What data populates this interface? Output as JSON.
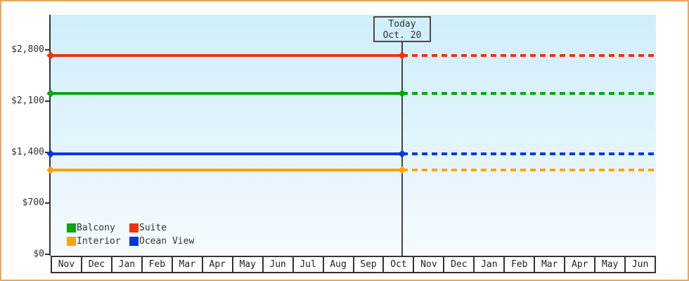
{
  "colors": {
    "frame": "#e9a75f",
    "axis": "#333333",
    "today_line": "#444444",
    "plot_bg_top": "#cfeefa",
    "plot_bg_bottom": "#f5fbfe",
    "balcony": "#0aa50f",
    "suite": "#ee3311",
    "interior": "#ffa405",
    "ocean_view": "#0535e8"
  },
  "today_box": {
    "line1": "Today",
    "line2": "Oct. 20"
  },
  "y_axis": {
    "tick_labels": [
      "$2,800",
      "$2,100",
      "$1,400",
      "$700",
      "$0"
    ],
    "tick_values": [
      2800,
      2100,
      1400,
      700,
      0
    ]
  },
  "legend": {
    "items": [
      {
        "label": "Balcony",
        "color_key": "balcony"
      },
      {
        "label": "Suite",
        "color_key": "suite"
      },
      {
        "label": "Interior",
        "color_key": "interior"
      },
      {
        "label": "Ocean View",
        "color_key": "ocean_view"
      }
    ]
  },
  "chart_data": {
    "type": "line",
    "title": "",
    "categories": [
      "Nov",
      "Dec",
      "Jan",
      "Feb",
      "Mar",
      "Apr",
      "May",
      "Jun",
      "Jul",
      "Aug",
      "Sep",
      "Oct",
      "Nov",
      "Dec",
      "Jan",
      "Feb",
      "Mar",
      "Apr",
      "May",
      "Jun"
    ],
    "series": [
      {
        "name": "Suite",
        "color": "#ee3311",
        "value": 2725,
        "constant_flat_line": true,
        "solid_until": "Oct. 20",
        "dashed_after_today": true
      },
      {
        "name": "Balcony",
        "color": "#0aa50f",
        "value": 2200,
        "constant_flat_line": true,
        "solid_until": "Oct. 20",
        "dashed_after_today": true
      },
      {
        "name": "Ocean View",
        "color": "#0535e8",
        "value": 1375,
        "constant_flat_line": true,
        "solid_until": "Oct. 20",
        "dashed_after_today": true
      },
      {
        "name": "Interior",
        "color": "#ffa405",
        "value": 1150,
        "constant_flat_line": true,
        "solid_until": "Oct. 20",
        "dashed_after_today": true
      }
    ],
    "values_note": "no numeric labels shown; values estimated from y-axis gridlines",
    "ylim": [
      0,
      3150
    ],
    "yticks": [
      0,
      700,
      1400,
      2100,
      2800
    ],
    "grid": false,
    "legend_position": "bottom-left inside plot",
    "annotations": [
      {
        "text": "Today Oct. 20",
        "x": "Oct 20",
        "type": "vertical-line-with-box"
      }
    ]
  }
}
